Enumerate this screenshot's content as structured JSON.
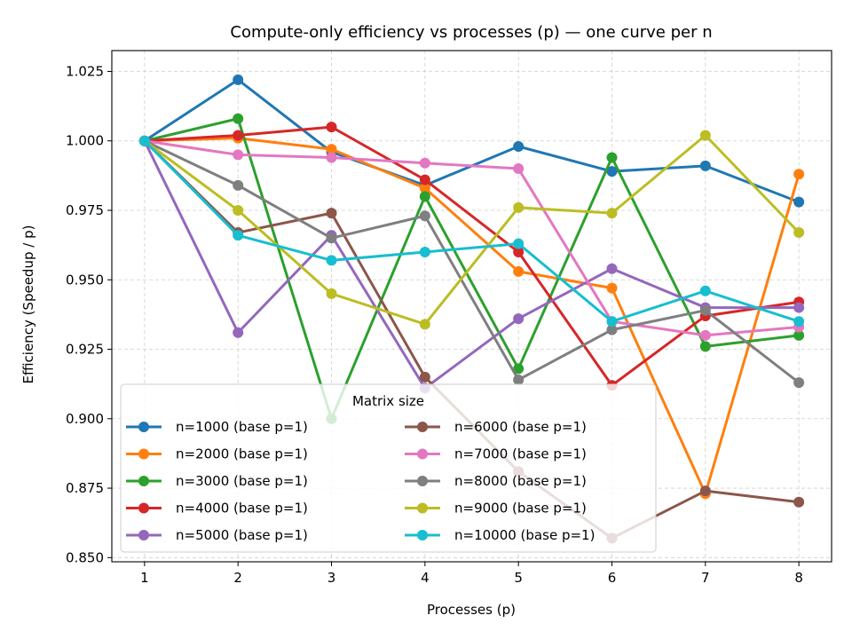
{
  "chart_data": {
    "type": "line",
    "title": "Compute-only efficiency vs processes (p) — one curve per n",
    "xlabel": "Processes (p)",
    "ylabel": "Efficiency (Speedup / p)",
    "x": [
      1,
      2,
      3,
      4,
      5,
      6,
      7,
      8
    ],
    "xlim": [
      0.65,
      8.35
    ],
    "ylim": [
      0.8485,
      1.0325
    ],
    "xticks": [
      1,
      2,
      3,
      4,
      5,
      6,
      7,
      8
    ],
    "yticks": [
      0.85,
      0.875,
      0.9,
      0.925,
      0.95,
      0.975,
      1.0,
      1.025
    ],
    "ytick_labels": [
      "0.850",
      "0.875",
      "0.900",
      "0.925",
      "0.950",
      "0.975",
      "1.000",
      "1.025"
    ],
    "grid": true,
    "legend": {
      "title": "Matrix size",
      "placement": "lower-left",
      "columns": 2
    },
    "series": [
      {
        "name": "n=1000 (base p=1)",
        "color": "#1f77b4",
        "values": [
          1.0,
          1.022,
          0.996,
          0.984,
          0.998,
          0.989,
          0.991,
          0.978
        ]
      },
      {
        "name": "n=2000 (base p=1)",
        "color": "#ff7f0e",
        "values": [
          1.0,
          1.001,
          0.997,
          0.983,
          0.953,
          0.947,
          0.873,
          0.988
        ]
      },
      {
        "name": "n=3000 (base p=1)",
        "color": "#2ca02c",
        "values": [
          1.0,
          1.008,
          0.9,
          0.98,
          0.918,
          0.994,
          0.926,
          0.93
        ]
      },
      {
        "name": "n=4000 (base p=1)",
        "color": "#d62728",
        "values": [
          1.0,
          1.002,
          1.005,
          0.986,
          0.96,
          0.912,
          0.937,
          0.942
        ]
      },
      {
        "name": "n=5000 (base p=1)",
        "color": "#9467bd",
        "values": [
          1.0,
          0.931,
          0.966,
          0.911,
          0.936,
          0.954,
          0.94,
          0.94
        ]
      },
      {
        "name": "n=6000 (base p=1)",
        "color": "#8c564b",
        "values": [
          1.0,
          0.967,
          0.974,
          0.915,
          0.881,
          0.857,
          0.874,
          0.87
        ]
      },
      {
        "name": "n=7000 (base p=1)",
        "color": "#e377c2",
        "values": [
          1.0,
          0.995,
          0.994,
          0.992,
          0.99,
          0.935,
          0.93,
          0.933
        ]
      },
      {
        "name": "n=8000 (base p=1)",
        "color": "#7f7f7f",
        "values": [
          1.0,
          0.984,
          0.965,
          0.973,
          0.914,
          0.932,
          0.939,
          0.913
        ]
      },
      {
        "name": "n=9000 (base p=1)",
        "color": "#bcbd22",
        "values": [
          1.0,
          0.975,
          0.945,
          0.934,
          0.976,
          0.974,
          1.002,
          0.967
        ]
      },
      {
        "name": "n=10000 (base p=1)",
        "color": "#17becf",
        "values": [
          1.0,
          0.966,
          0.957,
          0.96,
          0.963,
          0.935,
          0.946,
          0.935
        ]
      }
    ]
  }
}
